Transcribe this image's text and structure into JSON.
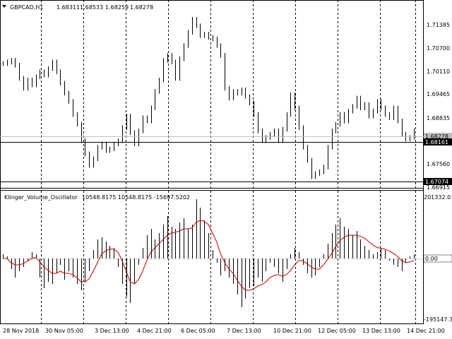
{
  "symbol_header": {
    "label": "GBPCAD,H1",
    "open": "1.68311",
    "high": "1.68533",
    "low": "1.68259",
    "close": "1.68278"
  },
  "indicator_header": {
    "label": "Klinger_Volume_Oscillator",
    "values": "10548.8175 10548.8175 -15697.5202"
  },
  "price_scale": [
    "1.71385",
    "1.70700",
    "1.70110",
    "1.69465",
    "1.68835",
    "1.67560",
    "1.66915"
  ],
  "price_markers": {
    "bid_box": "1.68278",
    "hline_upper": "1.68161",
    "hline_lower": "1.67074"
  },
  "indicator_scale": {
    "top": "201332.0",
    "zero": "0.00",
    "bottom": "-195147.3"
  },
  "time_labels": [
    "28 Nov 2018",
    "30 Nov 05:00",
    "3 Dec 13:00",
    "4 Dec 21:00",
    "6 Dec 05:00",
    "7 Dec 13:00",
    "10 Dec 21:00",
    "12 Dec 05:00",
    "13 Dec 13:00",
    "14 Dec 21:00"
  ],
  "colors": {
    "candles": "#000000",
    "signal_line": "#c00000",
    "grid": "#000000",
    "bid_line": "#c0c0c0"
  },
  "chart_data": {
    "type": "bar",
    "price_series_close": [
      1.7035,
      1.704,
      1.7045,
      1.703,
      1.699,
      1.696,
      1.6985,
      1.697,
      1.6995,
      1.701,
      1.7,
      1.702,
      1.704,
      1.701,
      1.6975,
      1.6945,
      1.692,
      1.688,
      1.685,
      1.68,
      1.676,
      1.6725,
      1.6745,
      1.678,
      1.679,
      1.677,
      1.6775,
      1.679,
      1.68,
      1.684,
      1.6875,
      1.6825,
      1.679,
      1.683,
      1.687,
      1.686,
      1.69,
      1.695,
      1.6985,
      1.7045,
      1.706,
      1.704,
      1.699,
      1.705,
      1.709,
      1.713,
      1.717,
      1.715,
      1.712,
      1.7125,
      1.7115,
      1.711,
      1.709,
      1.706,
      1.696,
      1.693,
      1.695,
      1.6945,
      1.6955,
      1.6935,
      1.6915,
      1.688,
      1.683,
      1.68,
      1.681,
      1.682,
      1.683,
      1.68,
      1.6835,
      1.688,
      1.694,
      1.69,
      1.684,
      1.678,
      1.674,
      1.669,
      1.67,
      1.6705,
      1.672,
      1.678,
      1.683,
      1.685,
      1.688,
      1.686,
      1.689,
      1.6905,
      1.693,
      1.69,
      1.691,
      1.6875,
      1.689,
      1.692,
      1.69,
      1.688,
      1.687,
      1.69,
      1.686,
      1.682,
      1.6805,
      1.681,
      1.683
    ],
    "kvo_histogram": [
      10,
      5,
      -25,
      -45,
      -30,
      -20,
      -5,
      15,
      10,
      -45,
      -70,
      -55,
      -60,
      -35,
      -15,
      -50,
      -30,
      -45,
      -60,
      -75,
      -55,
      -30,
      20,
      45,
      50,
      40,
      30,
      25,
      -20,
      -60,
      -90,
      -105,
      -60,
      -15,
      25,
      55,
      70,
      45,
      60,
      80,
      100,
      75,
      70,
      85,
      95,
      70,
      80,
      140,
      120,
      90,
      60,
      20,
      -10,
      -40,
      -30,
      -45,
      -60,
      -85,
      -115,
      -95,
      -70,
      -65,
      -45,
      -55,
      -30,
      -10,
      -20,
      -35,
      -55,
      -25,
      10,
      25,
      15,
      -15,
      -35,
      -45,
      -40,
      -20,
      10,
      35,
      60,
      80,
      95,
      75,
      70,
      55,
      65,
      45,
      30,
      20,
      10,
      15,
      25,
      20,
      -5,
      -15,
      -20,
      -30,
      -10,
      5,
      10
    ],
    "kvo_signal": [
      0,
      0,
      -10,
      -15,
      -15,
      -12,
      -6,
      0,
      2,
      -8,
      -20,
      -28,
      -35,
      -35,
      -30,
      -35,
      -35,
      -38,
      -45,
      -55,
      -55,
      -48,
      -30,
      -10,
      10,
      18,
      22,
      22,
      15,
      -5,
      -30,
      -55,
      -60,
      -50,
      -30,
      -5,
      15,
      25,
      35,
      45,
      55,
      60,
      62,
      65,
      70,
      70,
      72,
      85,
      90,
      88,
      80,
      60,
      40,
      10,
      -10,
      -25,
      -35,
      -50,
      -65,
      -75,
      -75,
      -72,
      -65,
      -62,
      -55,
      -45,
      -40,
      -38,
      -42,
      -38,
      -28,
      -15,
      -5,
      -5,
      -12,
      -20,
      -25,
      -25,
      -15,
      -2,
      12,
      28,
      42,
      50,
      55,
      55,
      55,
      52,
      48,
      40,
      32,
      26,
      24,
      22,
      18,
      12,
      5,
      -5,
      -10,
      -8,
      -5
    ],
    "price_ylim": [
      1.6665,
      1.719
    ],
    "indicator_ylim": [
      -195147.3,
      201332.0
    ],
    "grid": true
  }
}
